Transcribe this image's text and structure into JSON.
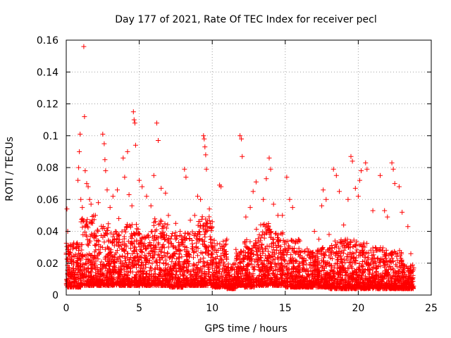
{
  "chart_data": {
    "type": "scatter",
    "title": "Day 177 of 2021, Rate Of TEC Index for receiver pecl",
    "xlabel": "GPS time / hours",
    "ylabel": "ROTI / TECUs",
    "xlim": [
      0,
      25
    ],
    "ylim": [
      0,
      0.16
    ],
    "x_ticks": [
      0,
      5,
      10,
      15,
      20,
      25
    ],
    "y_ticks": [
      0,
      0.02,
      0.04,
      0.06,
      0.08,
      0.1,
      0.12,
      0.14,
      0.16
    ],
    "x_tick_labels": [
      "0",
      "5",
      "10",
      "15",
      "20",
      "25"
    ],
    "y_tick_labels": [
      "0",
      "0.02",
      "0.04",
      "0.06",
      "0.08",
      "0.1",
      "0.12",
      "0.14",
      "0.16"
    ],
    "grid": true,
    "marker": "+",
    "marker_color": "#ff0000",
    "series": [
      {
        "points": [
          [
            0.05,
            0.054
          ],
          [
            0.1,
            0.04
          ],
          [
            0.2,
            0.026
          ],
          [
            0.3,
            0.021
          ],
          [
            0.5,
            0.03
          ],
          [
            0.7,
            0.02
          ],
          [
            0.8,
            0.014
          ],
          [
            0.8,
            0.072
          ],
          [
            0.85,
            0.08
          ],
          [
            0.9,
            0.09
          ],
          [
            0.95,
            0.101
          ],
          [
            1.0,
            0.06
          ],
          [
            1.1,
            0.055
          ],
          [
            1.2,
            0.156
          ],
          [
            1.25,
            0.112
          ],
          [
            1.3,
            0.078
          ],
          [
            1.4,
            0.07
          ],
          [
            1.5,
            0.068
          ],
          [
            1.6,
            0.06
          ],
          [
            1.7,
            0.057
          ],
          [
            2.0,
            0.05
          ],
          [
            2.2,
            0.058
          ],
          [
            2.5,
            0.101
          ],
          [
            2.6,
            0.095
          ],
          [
            2.65,
            0.085
          ],
          [
            2.7,
            0.078
          ],
          [
            2.8,
            0.066
          ],
          [
            3.0,
            0.055
          ],
          [
            3.2,
            0.062
          ],
          [
            3.5,
            0.066
          ],
          [
            3.6,
            0.048
          ],
          [
            3.9,
            0.086
          ],
          [
            4.0,
            0.074
          ],
          [
            4.2,
            0.09
          ],
          [
            4.3,
            0.063
          ],
          [
            4.5,
            0.056
          ],
          [
            4.6,
            0.115
          ],
          [
            4.65,
            0.11
          ],
          [
            4.7,
            0.108
          ],
          [
            4.75,
            0.094
          ],
          [
            5.0,
            0.072
          ],
          [
            5.2,
            0.068
          ],
          [
            5.5,
            0.062
          ],
          [
            5.8,
            0.056
          ],
          [
            6.0,
            0.075
          ],
          [
            6.2,
            0.108
          ],
          [
            6.3,
            0.097
          ],
          [
            6.5,
            0.067
          ],
          [
            6.8,
            0.064
          ],
          [
            7.0,
            0.05
          ],
          [
            7.5,
            0.045
          ],
          [
            7.8,
            0.04
          ],
          [
            8.1,
            0.079
          ],
          [
            8.2,
            0.074
          ],
          [
            8.5,
            0.047
          ],
          [
            8.8,
            0.05
          ],
          [
            9.0,
            0.062
          ],
          [
            9.2,
            0.06
          ],
          [
            9.4,
            0.1
          ],
          [
            9.45,
            0.098
          ],
          [
            9.5,
            0.093
          ],
          [
            9.55,
            0.088
          ],
          [
            9.6,
            0.079
          ],
          [
            9.8,
            0.054
          ],
          [
            10.0,
            0.046
          ],
          [
            10.5,
            0.069
          ],
          [
            10.6,
            0.068
          ],
          [
            11.0,
            0.035
          ],
          [
            11.9,
            0.1
          ],
          [
            12.0,
            0.098
          ],
          [
            12.05,
            0.087
          ],
          [
            12.3,
            0.049
          ],
          [
            12.6,
            0.055
          ],
          [
            12.8,
            0.065
          ],
          [
            13.0,
            0.071
          ],
          [
            13.5,
            0.06
          ],
          [
            13.7,
            0.073
          ],
          [
            13.9,
            0.086
          ],
          [
            14.0,
            0.079
          ],
          [
            14.2,
            0.057
          ],
          [
            14.5,
            0.05
          ],
          [
            14.8,
            0.05
          ],
          [
            15.1,
            0.074
          ],
          [
            15.3,
            0.06
          ],
          [
            15.5,
            0.055
          ],
          [
            16.0,
            0.034
          ],
          [
            16.5,
            0.029
          ],
          [
            17.0,
            0.04
          ],
          [
            17.3,
            0.035
          ],
          [
            17.5,
            0.056
          ],
          [
            17.6,
            0.066
          ],
          [
            17.8,
            0.06
          ],
          [
            18.0,
            0.038
          ],
          [
            18.3,
            0.079
          ],
          [
            18.5,
            0.075
          ],
          [
            18.7,
            0.065
          ],
          [
            19.0,
            0.044
          ],
          [
            19.3,
            0.06
          ],
          [
            19.5,
            0.087
          ],
          [
            19.6,
            0.084
          ],
          [
            19.8,
            0.067
          ],
          [
            20.0,
            0.062
          ],
          [
            20.1,
            0.072
          ],
          [
            20.2,
            0.078
          ],
          [
            20.5,
            0.083
          ],
          [
            20.6,
            0.079
          ],
          [
            21.0,
            0.053
          ],
          [
            21.5,
            0.075
          ],
          [
            21.8,
            0.053
          ],
          [
            22.0,
            0.049
          ],
          [
            22.3,
            0.083
          ],
          [
            22.4,
            0.079
          ],
          [
            22.5,
            0.07
          ],
          [
            22.8,
            0.068
          ],
          [
            23.0,
            0.052
          ],
          [
            23.4,
            0.043
          ],
          [
            23.6,
            0.026
          ],
          [
            23.8,
            0.017
          ]
        ]
      }
    ],
    "dense_band": [
      [
        0.0,
        1.0,
        0.005,
        0.033
      ],
      [
        1.0,
        2.0,
        0.006,
        0.05
      ],
      [
        2.0,
        3.0,
        0.006,
        0.045
      ],
      [
        3.0,
        4.0,
        0.006,
        0.04
      ],
      [
        4.0,
        5.0,
        0.006,
        0.045
      ],
      [
        5.0,
        6.0,
        0.006,
        0.04
      ],
      [
        6.0,
        7.0,
        0.006,
        0.048
      ],
      [
        7.0,
        8.0,
        0.005,
        0.04
      ],
      [
        8.0,
        9.0,
        0.006,
        0.04
      ],
      [
        9.0,
        10.0,
        0.006,
        0.05
      ],
      [
        10.0,
        11.0,
        0.005,
        0.035
      ],
      [
        11.0,
        11.6,
        0.004,
        0.02
      ],
      [
        11.6,
        12.2,
        0.006,
        0.03
      ],
      [
        12.2,
        13.0,
        0.005,
        0.035
      ],
      [
        13.0,
        14.0,
        0.006,
        0.045
      ],
      [
        14.0,
        15.0,
        0.006,
        0.04
      ],
      [
        15.0,
        16.0,
        0.005,
        0.035
      ],
      [
        16.0,
        17.0,
        0.005,
        0.028
      ],
      [
        17.0,
        18.0,
        0.005,
        0.03
      ],
      [
        18.0,
        19.0,
        0.004,
        0.035
      ],
      [
        19.0,
        20.0,
        0.004,
        0.035
      ],
      [
        20.0,
        21.0,
        0.004,
        0.033
      ],
      [
        21.0,
        22.0,
        0.004,
        0.03
      ],
      [
        22.0,
        23.0,
        0.004,
        0.028
      ],
      [
        23.0,
        23.8,
        0.004,
        0.02
      ]
    ]
  }
}
